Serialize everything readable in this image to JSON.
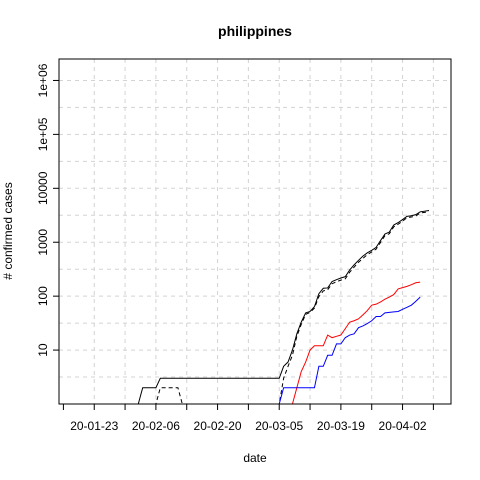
{
  "chart_data": {
    "type": "line",
    "title": "philippines",
    "xlabel": "date",
    "ylabel": "# confirmed cases",
    "y_scale": "log",
    "ylim": [
      1,
      2500000
    ],
    "xlim": [
      "2020-01-15",
      "2020-04-13"
    ],
    "grid": true,
    "x_ticks": [
      {
        "label": "20-01-23",
        "date": "2020-01-23"
      },
      {
        "label": "20-02-06",
        "date": "2020-02-06"
      },
      {
        "label": "20-02-20",
        "date": "2020-02-20"
      },
      {
        "label": "20-03-05",
        "date": "2020-03-05"
      },
      {
        "label": "20-03-19",
        "date": "2020-03-19"
      },
      {
        "label": "20-04-02",
        "date": "2020-04-02"
      }
    ],
    "y_ticks": [
      {
        "label": "10",
        "value": 10
      },
      {
        "label": "100",
        "value": 100
      },
      {
        "label": "1000",
        "value": 1000
      },
      {
        "label": "10000",
        "value": 10000
      },
      {
        "label": "1e+05",
        "value": 100000
      },
      {
        "label": "1e+06",
        "value": 1000000
      }
    ],
    "series": [
      {
        "color": "#000000",
        "dash": "solid",
        "points": [
          [
            "2020-01-30",
            1
          ],
          [
            "2020-02-02",
            1
          ],
          [
            "2020-02-03",
            2
          ],
          [
            "2020-02-06",
            2
          ],
          [
            "2020-02-07",
            3
          ],
          [
            "2020-03-05",
            3
          ],
          [
            "2020-03-06",
            5
          ],
          [
            "2020-03-07",
            6
          ],
          [
            "2020-03-08",
            10
          ],
          [
            "2020-03-09",
            20
          ],
          [
            "2020-03-10",
            33
          ],
          [
            "2020-03-11",
            49
          ],
          [
            "2020-03-12",
            52
          ],
          [
            "2020-03-13",
            64
          ],
          [
            "2020-03-14",
            111
          ],
          [
            "2020-03-15",
            140
          ],
          [
            "2020-03-16",
            142
          ],
          [
            "2020-03-17",
            187
          ],
          [
            "2020-03-18",
            202
          ],
          [
            "2020-03-19",
            217
          ],
          [
            "2020-03-20",
            230
          ],
          [
            "2020-03-21",
            307
          ],
          [
            "2020-03-22",
            380
          ],
          [
            "2020-03-23",
            462
          ],
          [
            "2020-03-24",
            552
          ],
          [
            "2020-03-25",
            636
          ],
          [
            "2020-03-26",
            707
          ],
          [
            "2020-03-27",
            803
          ],
          [
            "2020-03-28",
            1075
          ],
          [
            "2020-03-29",
            1418
          ],
          [
            "2020-03-30",
            1546
          ],
          [
            "2020-03-31",
            2084
          ],
          [
            "2020-04-01",
            2311
          ],
          [
            "2020-04-02",
            2633
          ],
          [
            "2020-04-03",
            3018
          ],
          [
            "2020-04-04",
            3094
          ],
          [
            "2020-04-05",
            3246
          ],
          [
            "2020-04-06",
            3660
          ],
          [
            "2020-04-07",
            3764
          ],
          [
            "2020-04-08",
            3870
          ]
        ]
      },
      {
        "color": "#000000",
        "dash": "dashed",
        "points": [
          [
            "2020-01-30",
            1
          ],
          [
            "2020-02-06",
            1
          ],
          [
            "2020-02-07",
            2
          ],
          [
            "2020-02-11",
            2
          ],
          [
            "2020-02-12",
            1
          ],
          [
            "2020-03-05",
            1
          ],
          [
            "2020-03-06",
            3
          ],
          [
            "2020-03-07",
            5
          ],
          [
            "2020-03-08",
            8
          ],
          [
            "2020-03-09",
            18
          ],
          [
            "2020-03-10",
            30
          ],
          [
            "2020-03-11",
            46
          ],
          [
            "2020-03-12",
            50
          ],
          [
            "2020-03-13",
            60
          ],
          [
            "2020-03-14",
            98
          ],
          [
            "2020-03-15",
            125
          ],
          [
            "2020-03-16",
            131
          ],
          [
            "2020-03-17",
            170
          ],
          [
            "2020-03-18",
            185
          ],
          [
            "2020-03-19",
            198
          ],
          [
            "2020-03-20",
            210
          ],
          [
            "2020-03-21",
            278
          ],
          [
            "2020-03-22",
            345
          ],
          [
            "2020-03-23",
            425
          ],
          [
            "2020-03-24",
            500
          ],
          [
            "2020-03-25",
            590
          ],
          [
            "2020-03-26",
            660
          ],
          [
            "2020-03-27",
            745
          ],
          [
            "2020-03-28",
            990
          ],
          [
            "2020-03-29",
            1320
          ],
          [
            "2020-03-30",
            1440
          ],
          [
            "2020-03-31",
            1930
          ],
          [
            "2020-04-01",
            2160
          ],
          [
            "2020-04-02",
            2460
          ],
          [
            "2020-04-03",
            2850
          ],
          [
            "2020-04-04",
            2930
          ],
          [
            "2020-04-05",
            3060
          ],
          [
            "2020-04-06",
            3470
          ],
          [
            "2020-04-07",
            3580
          ],
          [
            "2020-04-08",
            3700
          ]
        ]
      },
      {
        "color": "#ff0000",
        "dash": "solid",
        "points": [
          [
            "2020-01-30",
            1
          ],
          [
            "2020-03-08",
            1
          ],
          [
            "2020-03-09",
            2
          ],
          [
            "2020-03-10",
            4
          ],
          [
            "2020-03-11",
            6
          ],
          [
            "2020-03-12",
            10
          ],
          [
            "2020-03-13",
            12
          ],
          [
            "2020-03-14",
            12
          ],
          [
            "2020-03-15",
            12
          ],
          [
            "2020-03-16",
            19
          ],
          [
            "2020-03-17",
            17
          ],
          [
            "2020-03-18",
            18
          ],
          [
            "2020-03-19",
            19
          ],
          [
            "2020-03-20",
            25
          ],
          [
            "2020-03-21",
            33
          ],
          [
            "2020-03-22",
            35
          ],
          [
            "2020-03-23",
            38
          ],
          [
            "2020-03-24",
            45
          ],
          [
            "2020-03-25",
            54
          ],
          [
            "2020-03-26",
            68
          ],
          [
            "2020-03-27",
            71
          ],
          [
            "2020-03-28",
            78
          ],
          [
            "2020-03-29",
            88
          ],
          [
            "2020-03-30",
            96
          ],
          [
            "2020-03-31",
            107
          ],
          [
            "2020-04-01",
            136
          ],
          [
            "2020-04-02",
            144
          ],
          [
            "2020-04-03",
            152
          ],
          [
            "2020-04-04",
            163
          ],
          [
            "2020-04-05",
            177
          ],
          [
            "2020-04-06",
            182
          ]
        ]
      },
      {
        "color": "#0000ff",
        "dash": "solid",
        "points": [
          [
            "2020-01-30",
            1
          ],
          [
            "2020-03-05",
            1
          ],
          [
            "2020-03-06",
            2
          ],
          [
            "2020-03-13",
            2
          ],
          [
            "2020-03-14",
            5
          ],
          [
            "2020-03-15",
            5
          ],
          [
            "2020-03-16",
            8
          ],
          [
            "2020-03-17",
            8
          ],
          [
            "2020-03-18",
            13
          ],
          [
            "2020-03-19",
            13
          ],
          [
            "2020-03-20",
            17
          ],
          [
            "2020-03-21",
            19
          ],
          [
            "2020-03-22",
            20
          ],
          [
            "2020-03-23",
            26
          ],
          [
            "2020-03-24",
            28
          ],
          [
            "2020-03-25",
            31
          ],
          [
            "2020-03-26",
            35
          ],
          [
            "2020-03-27",
            42
          ],
          [
            "2020-03-28",
            42
          ],
          [
            "2020-03-29",
            49
          ],
          [
            "2020-03-30",
            50
          ],
          [
            "2020-03-31",
            51
          ],
          [
            "2020-04-01",
            52
          ],
          [
            "2020-04-02",
            57
          ],
          [
            "2020-04-03",
            62
          ],
          [
            "2020-04-04",
            68
          ],
          [
            "2020-04-05",
            80
          ],
          [
            "2020-04-06",
            96
          ]
        ]
      }
    ]
  }
}
